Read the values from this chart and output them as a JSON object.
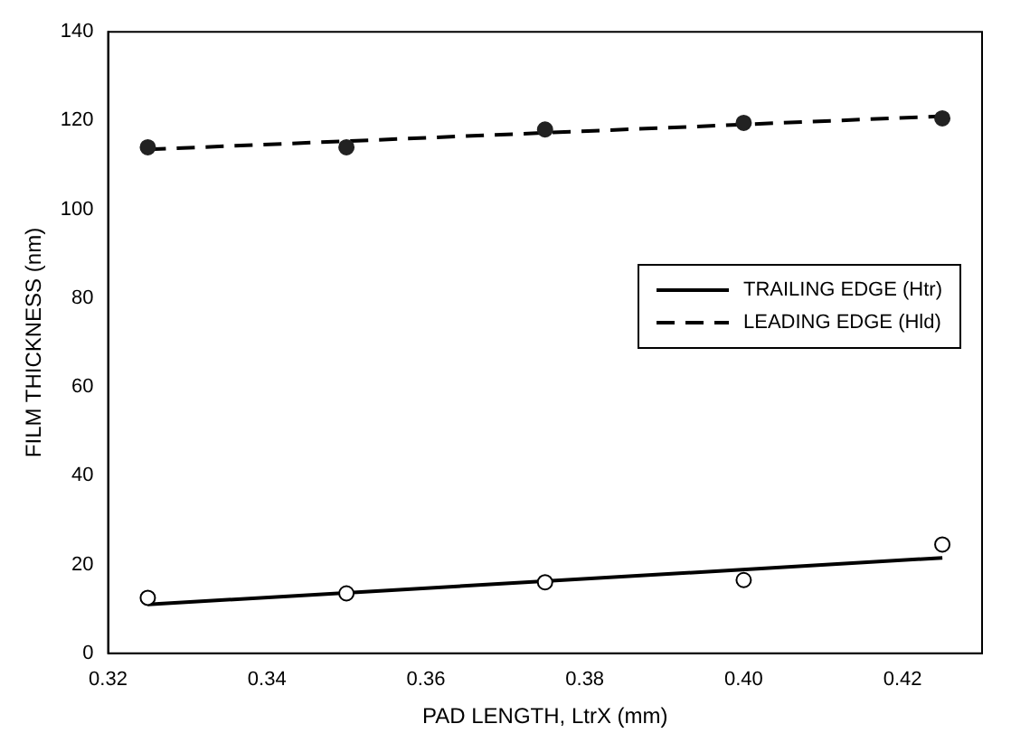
{
  "chart_data": {
    "type": "line",
    "xlabel": "PAD LENGTH, LtrX (mm)",
    "ylabel": "FILM THICKNESS (nm)",
    "xlim": [
      0.32,
      0.43
    ],
    "xticks": [
      {
        "value": 0.32,
        "label": "0.32"
      },
      {
        "value": 0.34,
        "label": "0.34"
      },
      {
        "value": 0.36,
        "label": "0.36"
      },
      {
        "value": 0.38,
        "label": "0.38"
      },
      {
        "value": 0.4,
        "label": "0.40"
      },
      {
        "value": 0.42,
        "label": "0.42"
      }
    ],
    "ylim": [
      0,
      140
    ],
    "yticks": [
      0,
      20,
      40,
      60,
      80,
      100,
      120,
      140
    ],
    "grid": false,
    "legend": "right",
    "series": [
      {
        "name": "TRAILING EDGE (Htr)",
        "type": "line",
        "color": "#000000",
        "line_style": "solid",
        "marker": "none",
        "x": [
          0.325,
          0.425
        ],
        "values": [
          11,
          21.5
        ]
      },
      {
        "name": "LEADING EDGE (Hld)",
        "type": "line",
        "color": "#000000",
        "line_style": "dashed",
        "marker": "none",
        "x": [
          0.325,
          0.425
        ],
        "values": [
          113.5,
          121
        ]
      },
      {
        "type": "scatter",
        "color": "#000000",
        "marker": "circle",
        "x": [
          0.325,
          0.35,
          0.375,
          0.4,
          0.425
        ],
        "values": [
          12.5,
          13.5,
          16,
          16.5,
          24.5
        ]
      },
      {
        "type": "scatter",
        "color": "#222222",
        "marker": "circle",
        "x": [
          0.325,
          0.35,
          0.375,
          0.4,
          0.425
        ],
        "values": [
          114,
          114,
          118,
          119.5,
          120.5
        ]
      }
    ]
  }
}
